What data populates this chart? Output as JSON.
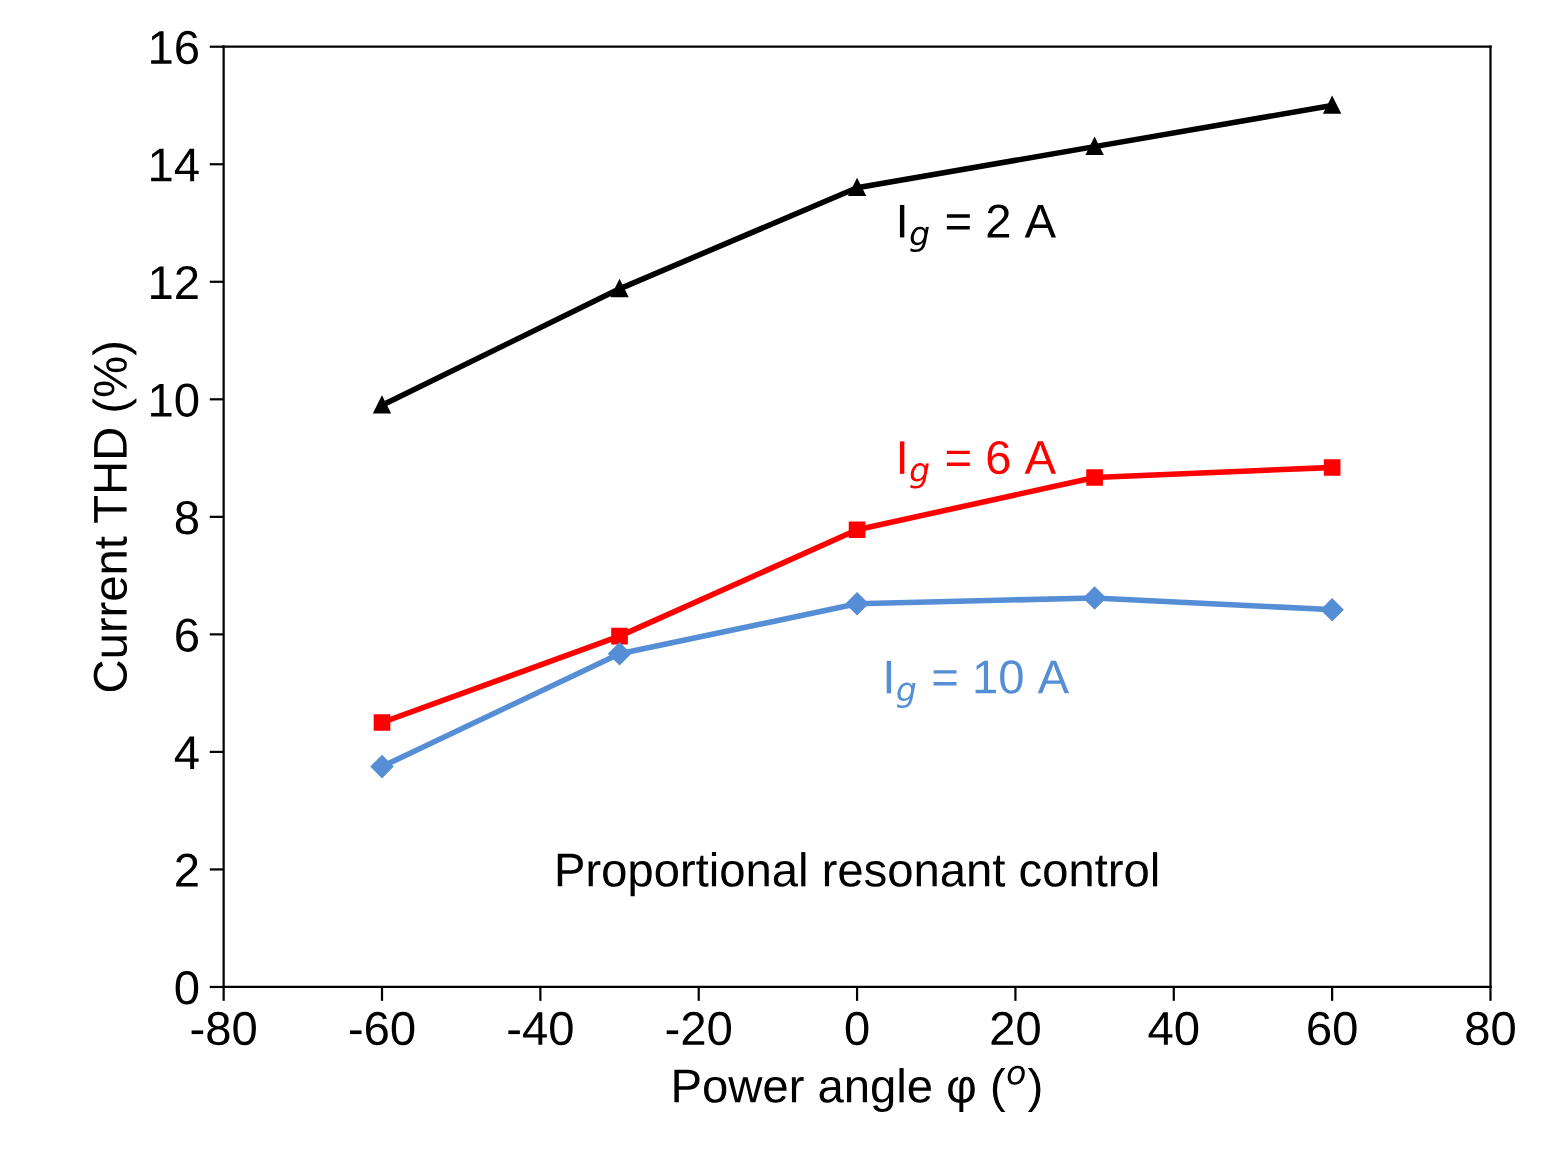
{
  "chart_data": {
    "type": "line",
    "xlabel": "Power angle φ ($^{o}$)",
    "ylabel": "Current THD (%)",
    "x": [
      -60,
      -30,
      0,
      30,
      60
    ],
    "series": [
      {
        "name": "I$_{g}$ = 2 A",
        "color": "#000000",
        "marker": "triangle",
        "values": [
          9.9,
          11.88,
          13.6,
          14.3,
          15.0
        ]
      },
      {
        "name": "I$_{g}$ = 6 A",
        "color": "#ff0000",
        "marker": "square",
        "values": [
          4.5,
          5.97,
          7.78,
          8.67,
          8.84
        ]
      },
      {
        "name": "I$_{g}$ = 10 A",
        "color": "#558ed5",
        "marker": "diamond",
        "values": [
          3.75,
          5.67,
          6.52,
          6.62,
          6.42
        ]
      }
    ],
    "xlim": [
      -80,
      80
    ],
    "xticks": [
      -80,
      -60,
      -40,
      -20,
      0,
      20,
      40,
      60,
      80
    ],
    "ylim": [
      0,
      16
    ],
    "yticks": [
      0,
      2,
      4,
      6,
      8,
      10,
      12,
      14,
      16
    ],
    "annotations": [
      "Proportional resonant control"
    ],
    "grid": false,
    "legend": false,
    "line_style": "solid"
  }
}
